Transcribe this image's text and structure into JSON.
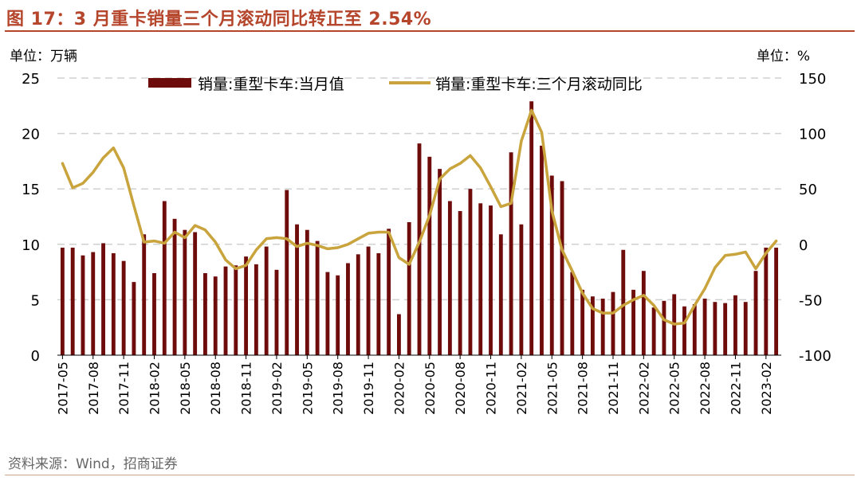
{
  "title": "图 17：3 月重卡销量三个月滚动同比转正至 2.54%",
  "left_unit": "单位：万辆",
  "right_unit": "单位：%",
  "source": "资料来源：Wind，招商证券",
  "colors": {
    "bar": "#6e0c0c",
    "line": "#c9a33c",
    "accent": "#b5462c",
    "grid": "#d0d0d0",
    "neg_tick": "#e00000"
  },
  "chart_data": {
    "type": "bar",
    "title": "图 17：3 月重卡销量三个月滚动同比转正至 2.54%",
    "x": [
      "2017-05",
      "2017-06",
      "2017-07",
      "2017-08",
      "2017-09",
      "2017-10",
      "2017-11",
      "2017-12",
      "2018-01",
      "2018-02",
      "2018-03",
      "2018-04",
      "2018-05",
      "2018-06",
      "2018-07",
      "2018-08",
      "2018-09",
      "2018-10",
      "2018-11",
      "2018-12",
      "2019-01",
      "2019-02",
      "2019-03",
      "2019-04",
      "2019-05",
      "2019-06",
      "2019-07",
      "2019-08",
      "2019-09",
      "2019-10",
      "2019-11",
      "2019-12",
      "2020-01",
      "2020-02",
      "2020-03",
      "2020-04",
      "2020-05",
      "2020-06",
      "2020-07",
      "2020-08",
      "2020-09",
      "2020-10",
      "2020-11",
      "2020-12",
      "2021-01",
      "2021-02",
      "2021-03",
      "2021-04",
      "2021-05",
      "2021-06",
      "2021-07",
      "2021-08",
      "2021-09",
      "2021-10",
      "2021-11",
      "2021-12",
      "2022-01",
      "2022-02",
      "2022-03",
      "2022-04",
      "2022-05",
      "2022-06",
      "2022-07",
      "2022-08",
      "2022-09",
      "2022-10",
      "2022-11",
      "2022-12",
      "2023-01",
      "2023-02",
      "2023-03"
    ],
    "x_tick_labels": [
      "2017-05",
      "2017-08",
      "2017-11",
      "2018-02",
      "2018-05",
      "2018-08",
      "2018-11",
      "2019-02",
      "2019-05",
      "2019-08",
      "2019-11",
      "2020-02",
      "2020-05",
      "2020-08",
      "2020-11",
      "2021-02",
      "2021-05",
      "2021-08",
      "2021-11",
      "2022-02",
      "2022-05",
      "2022-08",
      "2022-11",
      "2023-02"
    ],
    "series": [
      {
        "name": "销量:重型卡车:当月值",
        "type": "bar",
        "axis": "left",
        "values": [
          9.7,
          9.7,
          9.0,
          9.3,
          10.1,
          9.2,
          8.5,
          6.6,
          10.9,
          7.4,
          13.9,
          12.3,
          11.3,
          11.1,
          7.4,
          7.1,
          8.0,
          8.1,
          8.9,
          8.2,
          9.8,
          7.7,
          14.9,
          11.8,
          11.3,
          10.3,
          7.5,
          7.2,
          8.3,
          9.1,
          9.8,
          9.2,
          11.4,
          3.7,
          12.0,
          19.1,
          17.9,
          16.8,
          13.9,
          13.0,
          15.0,
          13.7,
          13.5,
          10.9,
          18.3,
          11.8,
          22.9,
          18.9,
          16.2,
          15.7,
          7.5,
          5.9,
          5.3,
          5.1,
          5.7,
          9.5,
          5.9,
          7.6,
          4.3,
          4.9,
          5.5,
          4.4,
          4.6,
          5.1,
          4.8,
          4.7,
          5.4,
          4.8,
          7.6,
          9.7,
          9.7
        ]
      },
      {
        "name": "销量:重型卡车:三个月滚动同比",
        "type": "line",
        "axis": "right",
        "values": [
          73,
          51,
          55,
          65,
          78,
          87,
          69,
          35,
          2,
          3,
          1,
          11,
          6,
          17,
          13,
          2,
          -14,
          -22,
          -19,
          -5,
          5,
          6,
          5,
          -2,
          1,
          -1,
          -4,
          -3,
          0,
          5,
          10,
          11,
          11,
          -12,
          -18,
          2,
          26,
          59,
          68,
          73,
          80,
          69,
          52,
          34,
          37,
          93,
          121,
          101,
          30,
          -5,
          -24,
          -44,
          -58,
          -62,
          -62,
          -55,
          -50,
          -46,
          -55,
          -68,
          -72,
          -71,
          -55,
          -40,
          -21,
          -10,
          -9,
          -7,
          -22,
          -8,
          3
        ]
      }
    ],
    "y_left": {
      "label": "万辆",
      "ylim": [
        0,
        25
      ],
      "ticks": [
        0,
        5,
        10,
        15,
        20,
        25
      ]
    },
    "y_right": {
      "label": "%",
      "ylim": [
        -100,
        150
      ],
      "ticks": [
        -100,
        -50,
        0,
        50,
        100,
        150
      ]
    },
    "grid": true,
    "legend": "top"
  }
}
